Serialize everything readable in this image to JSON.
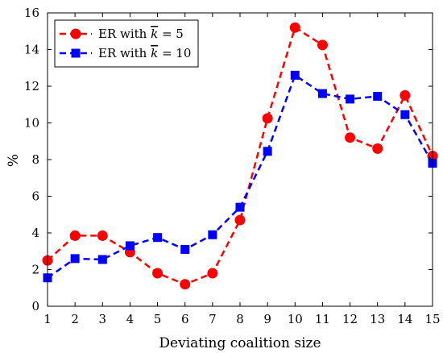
{
  "chart_data": {
    "type": "line",
    "title": "",
    "xlabel": "Deviating coalition size",
    "ylabel": "%",
    "x": [
      1,
      2,
      3,
      4,
      5,
      6,
      7,
      8,
      9,
      10,
      11,
      12,
      13,
      14,
      15
    ],
    "xlim": [
      1,
      15
    ],
    "ylim": [
      0,
      16
    ],
    "xticks": [
      "1",
      "2",
      "3",
      "4",
      "5",
      "6",
      "7",
      "8",
      "9",
      "10",
      "11",
      "12",
      "13",
      "14",
      "15"
    ],
    "yticks": [
      "0",
      "2",
      "4",
      "6",
      "8",
      "10",
      "12",
      "14",
      "16"
    ],
    "grid": false,
    "legend_position": "top-left",
    "series": [
      {
        "name_prefix": "ER with ",
        "name_symbol": "k",
        "name_suffix": " = 5",
        "color": "#ff0000",
        "marker": "circle",
        "line_style": "dashed",
        "values": [
          2.5,
          3.85,
          3.85,
          2.95,
          1.8,
          1.2,
          1.8,
          4.7,
          10.25,
          15.2,
          14.25,
          9.2,
          8.6,
          11.5,
          8.2
        ]
      },
      {
        "name_prefix": "ER with ",
        "name_symbol": "k",
        "name_suffix": " = 10",
        "color": "#0000ff",
        "marker": "square",
        "line_style": "dashed",
        "values": [
          1.55,
          2.6,
          2.55,
          3.3,
          3.75,
          3.1,
          3.9,
          5.4,
          8.45,
          12.6,
          11.6,
          11.3,
          11.45,
          10.45,
          7.8
        ]
      }
    ]
  }
}
